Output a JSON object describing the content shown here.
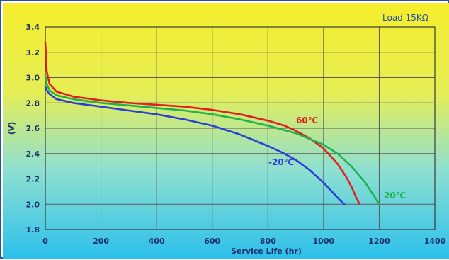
{
  "chart_data": {
    "type": "line",
    "title": "",
    "annotation": "Load 15KΩ",
    "xlabel": "Service Life (hr)",
    "ylabel": "(V)",
    "xlim": [
      0,
      1400
    ],
    "ylim": [
      1.8,
      3.4
    ],
    "xticks": [
      0,
      200,
      400,
      600,
      800,
      1000,
      1200,
      1400
    ],
    "yticks": [
      1.8,
      2.0,
      2.2,
      2.4,
      2.6,
      2.8,
      3.0,
      3.2,
      3.4
    ],
    "xtick_labels": [
      "0",
      "200",
      "400",
      "600",
      "800",
      "1000",
      "1200",
      "1400"
    ],
    "ytick_labels": [
      "1.8",
      "2.0",
      "2.2",
      "2.4",
      "2.6",
      "2.8",
      "3.0",
      "3.2",
      "3.4"
    ],
    "grid": true,
    "background": "yellow-to-cyan vertical gradient",
    "series": [
      {
        "name": "60℃",
        "color": "#e02020",
        "x": [
          0,
          5,
          15,
          40,
          100,
          200,
          300,
          400,
          500,
          600,
          700,
          800,
          860,
          900,
          950,
          1000,
          1050,
          1080,
          1100,
          1120,
          1130
        ],
        "y": [
          3.28,
          3.05,
          2.95,
          2.89,
          2.85,
          2.82,
          2.8,
          2.785,
          2.77,
          2.745,
          2.71,
          2.66,
          2.62,
          2.58,
          2.52,
          2.44,
          2.32,
          2.22,
          2.14,
          2.04,
          2.0
        ]
      },
      {
        "name": "20℃",
        "color": "#20b050",
        "x": [
          0,
          5,
          15,
          40,
          100,
          200,
          300,
          400,
          500,
          600,
          700,
          800,
          900,
          1000,
          1050,
          1100,
          1150,
          1180,
          1200
        ],
        "y": [
          3.02,
          2.95,
          2.9,
          2.86,
          2.83,
          2.8,
          2.78,
          2.76,
          2.74,
          2.71,
          2.67,
          2.62,
          2.56,
          2.47,
          2.4,
          2.3,
          2.17,
          2.07,
          2.0
        ]
      },
      {
        "name": "-20℃",
        "color": "#2a3fd8",
        "x": [
          0,
          5,
          15,
          40,
          100,
          200,
          300,
          400,
          500,
          600,
          700,
          800,
          850,
          900,
          950,
          1000,
          1030,
          1060,
          1075
        ],
        "y": [
          2.93,
          2.9,
          2.87,
          2.83,
          2.8,
          2.77,
          2.74,
          2.71,
          2.67,
          2.62,
          2.55,
          2.46,
          2.41,
          2.35,
          2.27,
          2.17,
          2.1,
          2.03,
          2.0
        ]
      }
    ]
  },
  "series_label_colors": [
    "#e02020",
    "#20b050",
    "#2a3fd8"
  ]
}
